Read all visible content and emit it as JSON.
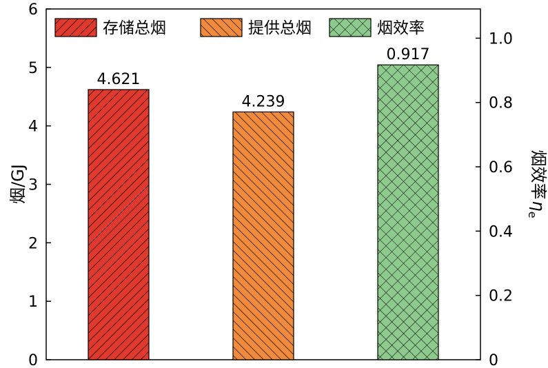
{
  "chart_data": {
    "type": "bar",
    "categories": [
      "存储总烟",
      "提供总烟",
      "烟效率"
    ],
    "series": [
      {
        "name": "存储总烟",
        "axis": "left",
        "category": "存储总烟",
        "value": 4.621,
        "label": "4.621",
        "color": "#e03a2f",
        "pattern": "diagonal-up"
      },
      {
        "name": "提供总烟",
        "axis": "left",
        "category": "提供总烟",
        "value": 4.239,
        "label": "4.239",
        "color": "#f08a3c",
        "pattern": "diagonal-down"
      },
      {
        "name": "烟效率",
        "axis": "right",
        "category": "烟效率",
        "value": 0.917,
        "label": "0.917",
        "color": "#8ec98e",
        "pattern": "crosshatch"
      }
    ],
    "left_axis": {
      "label": "烟/GJ",
      "range": [
        0,
        6
      ],
      "ticks": [
        0,
        1,
        2,
        3,
        4,
        5,
        6
      ],
      "tick_labels": [
        "0",
        "1",
        "2",
        "3",
        "4",
        "5",
        "6"
      ]
    },
    "right_axis": {
      "label": "烟效率",
      "label_symbol": "η",
      "label_subscript": "e",
      "range": [
        0,
        1.0909
      ],
      "ticks": [
        0,
        0.2,
        0.4,
        0.6,
        0.8,
        1.0
      ],
      "tick_labels": [
        "0",
        "0.2",
        "0.4",
        "0.6",
        "0.8",
        "1.0"
      ]
    },
    "legend": {
      "placement": "top",
      "entries": [
        "存储总烟",
        "提供总烟",
        "烟效率"
      ]
    },
    "grid": false
  }
}
